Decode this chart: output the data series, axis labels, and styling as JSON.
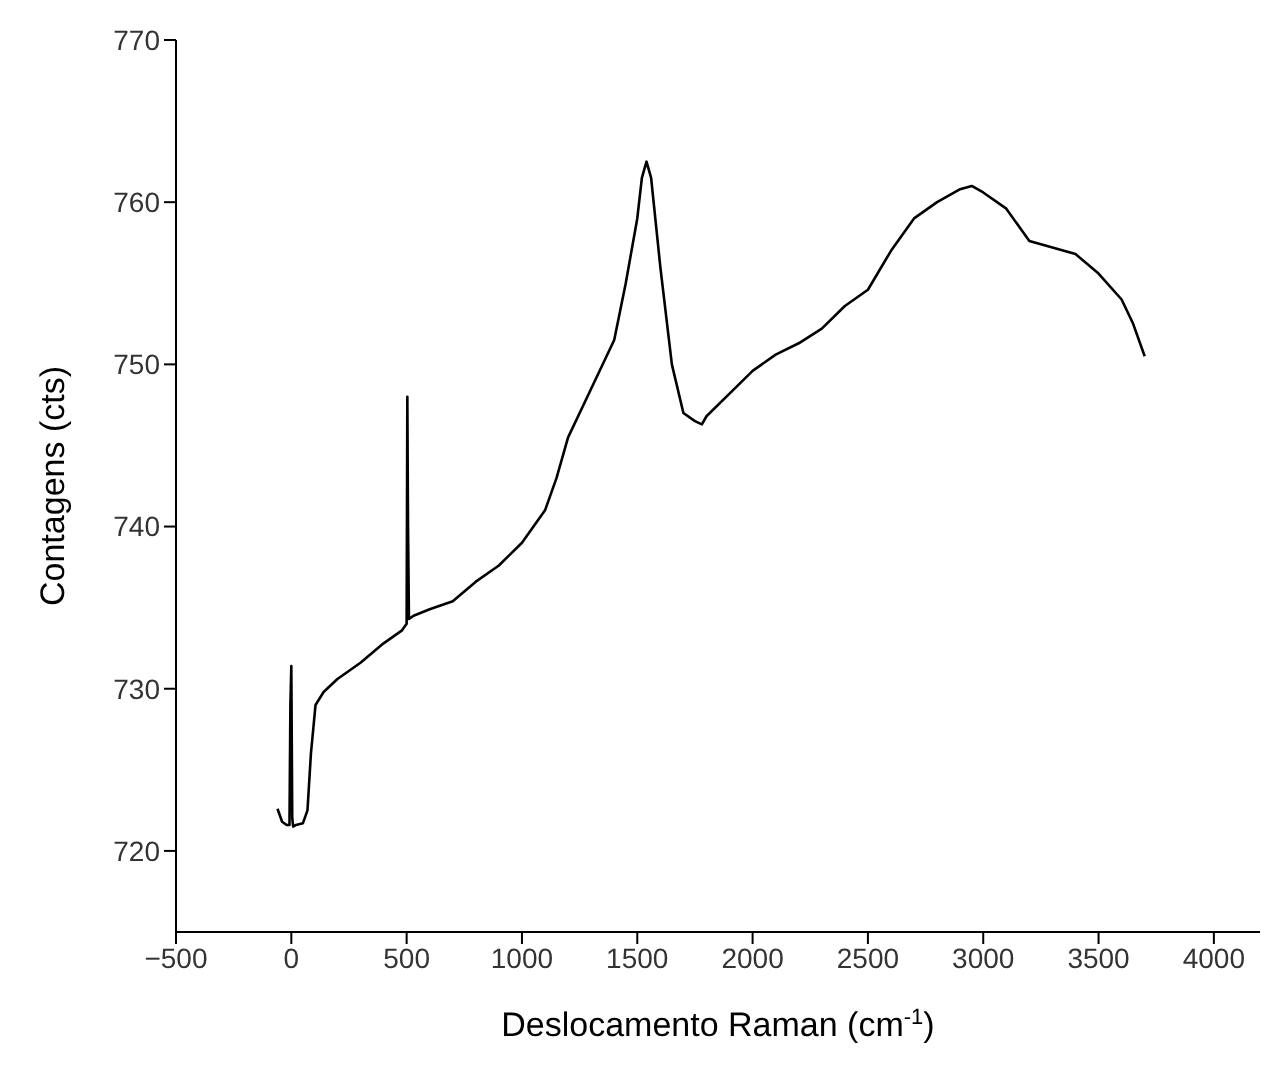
{
  "chart_data": {
    "type": "line",
    "xlabel": "Deslocamento Raman (cm$^{-1}$)",
    "ylabel": "Contagens (cts)",
    "xlim": [
      -500,
      4200
    ],
    "ylim": [
      715,
      770
    ],
    "xticks": [
      -500,
      0,
      500,
      1000,
      1500,
      2000,
      2500,
      3000,
      3500,
      4000
    ],
    "yticks": [
      720,
      730,
      740,
      750,
      760,
      770
    ],
    "marker": "none",
    "line_style": "solid",
    "series": [
      {
        "color": "#000000",
        "x": [
          -60,
          -40,
          -20,
          -8,
          -4,
          0,
          4,
          8,
          20,
          50,
          70,
          85,
          105,
          140,
          200,
          300,
          400,
          480,
          500,
          503,
          506,
          510,
          530,
          600,
          700,
          800,
          900,
          1000,
          1100,
          1150,
          1200,
          1300,
          1400,
          1450,
          1500,
          1520,
          1540,
          1560,
          1600,
          1650,
          1700,
          1750,
          1780,
          1800,
          1900,
          2000,
          2100,
          2200,
          2300,
          2400,
          2500,
          2600,
          2700,
          2800,
          2900,
          2950,
          3000,
          3100,
          3200,
          3300,
          3400,
          3500,
          3600,
          3650,
          3700
        ],
        "values": [
          722.6,
          721.8,
          721.6,
          721.6,
          729,
          731.4,
          722,
          721.5,
          721.6,
          721.7,
          722.5,
          726,
          729,
          729.8,
          730.6,
          731.6,
          732.8,
          733.6,
          734,
          748,
          740,
          734.3,
          734.5,
          734.9,
          735.4,
          736.6,
          737.6,
          739,
          741,
          743,
          745.5,
          748.5,
          751.5,
          755,
          759,
          761.5,
          762.5,
          761.5,
          756,
          750,
          747,
          746.5,
          746.3,
          746.8,
          748.2,
          749.6,
          750.6,
          751.3,
          752.2,
          753.6,
          754.6,
          757,
          759,
          760,
          760.8,
          761,
          760.6,
          759.6,
          757.6,
          757.2,
          756.8,
          755.6,
          754,
          752.5,
          750.5
        ]
      }
    ]
  }
}
